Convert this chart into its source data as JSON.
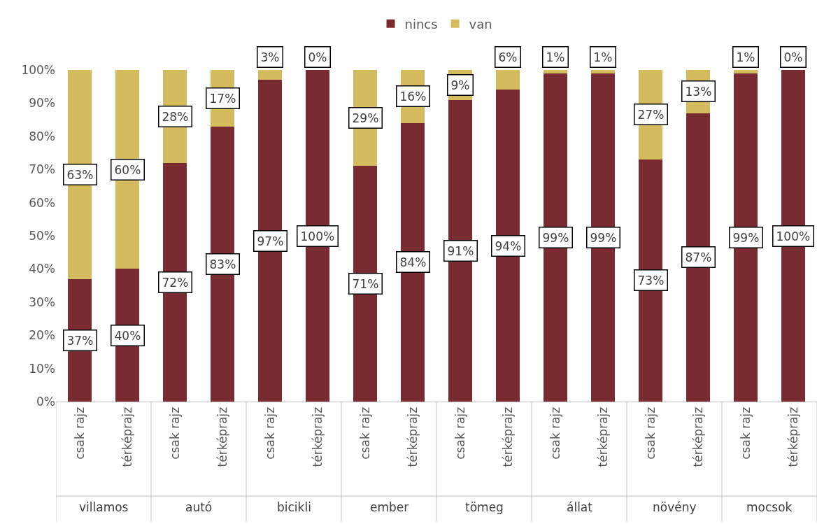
{
  "chart_data": {
    "type": "bar",
    "stacked": true,
    "legend": "top",
    "categories": [
      "csak rajz",
      "térképrajz",
      "csak rajz",
      "térképrajz",
      "csak rajz",
      "térképrajz",
      "csak rajz",
      "térképrajz",
      "csak rajz",
      "térképrajz",
      "csak rajz",
      "térképrajz",
      "csak rajz",
      "térképrajz",
      "csak rajz",
      "térképrajz"
    ],
    "annotations": [
      "villamos",
      "autó",
      "bicikli",
      "ember",
      "tömeg",
      "állat",
      "növény",
      "mocsok"
    ],
    "series": [
      {
        "name": "nincs",
        "color": "#7a2b32",
        "values": [
          37,
          40,
          72,
          83,
          97,
          100,
          71,
          84,
          91,
          94,
          99,
          99,
          73,
          87,
          99,
          100
        ],
        "value_labels": [
          "37%",
          "40%",
          "72%",
          "83%",
          "97%",
          "100%",
          "71%",
          "84%",
          "91%",
          "94%",
          "99%",
          "99%",
          "73%",
          "87%",
          "99%",
          "100%"
        ]
      },
      {
        "name": "van",
        "color": "#d3bb5e",
        "values": [
          63,
          60,
          28,
          17,
          3,
          0,
          29,
          16,
          9,
          6,
          1,
          1,
          27,
          13,
          1,
          0
        ],
        "value_labels": [
          "63%",
          "60%",
          "28%",
          "17%",
          "3%",
          "0%",
          "29%",
          "16%",
          "9%",
          "6%",
          "1%",
          "1%",
          "27%",
          "13%",
          "1%",
          "0%"
        ]
      }
    ],
    "ylim": [
      0,
      100
    ],
    "yticks": [
      {
        "value": 0,
        "label": "0%"
      },
      {
        "value": 10,
        "label": "10%"
      },
      {
        "value": 20,
        "label": "20%"
      },
      {
        "value": 30,
        "label": "30%"
      },
      {
        "value": 40,
        "label": "40%"
      },
      {
        "value": 50,
        "label": "50%"
      },
      {
        "value": 60,
        "label": "60%"
      },
      {
        "value": 70,
        "label": "70%"
      },
      {
        "value": 80,
        "label": "80%"
      },
      {
        "value": 90,
        "label": "90%"
      },
      {
        "value": 100,
        "label": "100%"
      }
    ]
  }
}
